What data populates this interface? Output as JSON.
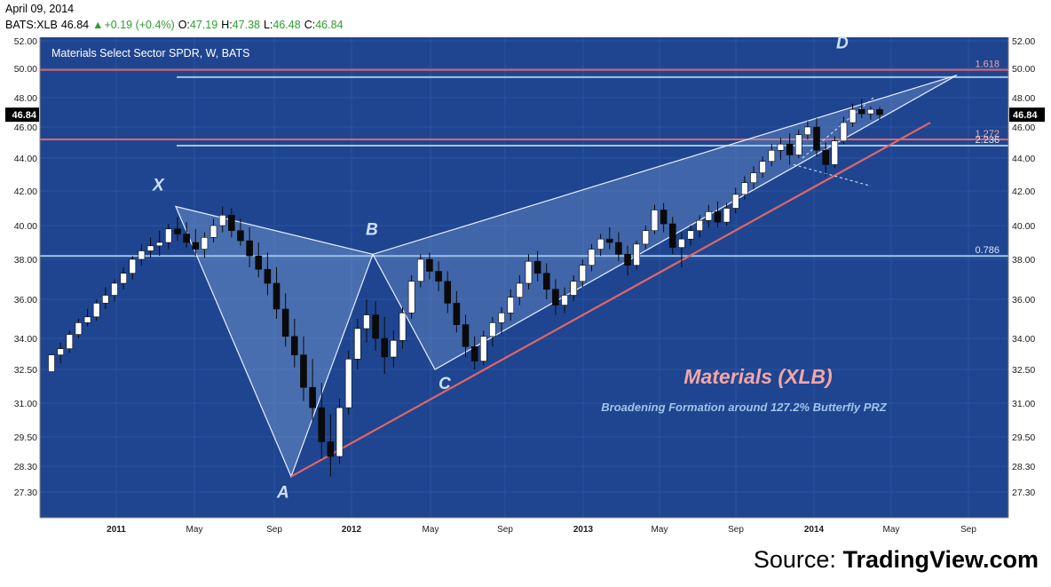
{
  "header": {
    "date": "April 09, 2014",
    "symbol": "BATS:XLB",
    "last": "46.84",
    "change_icon": "up-triangle-icon",
    "change": "+0.19 (+0.4%)",
    "open_label": "O:",
    "open": "47.19",
    "high_label": "H:",
    "high": "47.38",
    "low_label": "L:",
    "low": "46.48",
    "close_label": "C:",
    "close": "46.84"
  },
  "chart_data": {
    "type": "candlestick",
    "title": "Materials Select Sector SPDR, W, BATS",
    "y_ticks": [
      "52.00",
      "50.00",
      "48.00",
      "46.00",
      "44.00",
      "42.00",
      "40.00",
      "38.00",
      "36.00",
      "34.00",
      "32.50",
      "31.00",
      "29.50",
      "28.30",
      "27.30"
    ],
    "y_tick_values": [
      52.0,
      50.0,
      48.0,
      46.0,
      44.0,
      42.0,
      40.0,
      38.0,
      36.0,
      34.0,
      32.5,
      31.0,
      29.5,
      28.3,
      27.3
    ],
    "x_ticks": [
      "2011",
      "May",
      "Sep",
      "2012",
      "May",
      "Sep",
      "2013",
      "May",
      "Sep",
      "2014",
      "May",
      "Sep"
    ],
    "x_tick_dates": [
      "2011-01",
      "2011-05",
      "2011-09",
      "2012-01",
      "2012-05",
      "2012-09",
      "2013-01",
      "2013-05",
      "2013-09",
      "2014-01",
      "2014-05",
      "2014-09"
    ],
    "last_price_label": "46.84",
    "last_price": 46.84,
    "horizontal_levels": [
      {
        "label": "1.618",
        "value": 49.9,
        "color": "#e06666"
      },
      {
        "label": "",
        "value": 49.4,
        "color": "#9fc5e8"
      },
      {
        "label": "1.272",
        "value": 45.2,
        "color": "#e06666"
      },
      {
        "label": "2.236",
        "value": 44.8,
        "color": "#9fc5e8"
      },
      {
        "label": "0.786",
        "value": 38.2,
        "color": "#9fc5e8"
      }
    ],
    "pattern_points": [
      {
        "label": "X",
        "date": "2011-04",
        "value": 41.1
      },
      {
        "label": "A",
        "date": "2011-10",
        "value": 27.9
      },
      {
        "label": "B",
        "date": "2012-03",
        "value": 38.3
      },
      {
        "label": "C",
        "date": "2012-06",
        "value": 32.5
      },
      {
        "label": "D",
        "date": "2014-03",
        "value": 47.3
      }
    ],
    "annotations": {
      "main": "Materials (XLB)",
      "sub": "Broadening Formation around 127.2% Butterfly PRZ"
    },
    "candles": [
      [
        32.4,
        33.2,
        32.4,
        33.2
      ],
      [
        33.2,
        33.8,
        32.8,
        33.5
      ],
      [
        33.5,
        34.4,
        33.3,
        34.2
      ],
      [
        34.2,
        35.0,
        34.0,
        34.8
      ],
      [
        34.8,
        35.5,
        34.6,
        35.1
      ],
      [
        35.1,
        36.0,
        34.9,
        35.8
      ],
      [
        35.8,
        36.6,
        35.5,
        36.2
      ],
      [
        36.2,
        37.0,
        35.9,
        36.8
      ],
      [
        36.8,
        37.6,
        36.5,
        37.3
      ],
      [
        37.3,
        38.2,
        37.0,
        38.0
      ],
      [
        38.0,
        38.9,
        37.7,
        38.5
      ],
      [
        38.5,
        39.3,
        38.1,
        38.8
      ],
      [
        38.8,
        39.7,
        38.2,
        39.0
      ],
      [
        39.0,
        40.1,
        38.6,
        39.8
      ],
      [
        39.8,
        40.5,
        39.1,
        39.5
      ],
      [
        39.5,
        40.2,
        38.7,
        39.0
      ],
      [
        39.0,
        39.8,
        38.2,
        38.6
      ],
      [
        38.6,
        39.6,
        38.1,
        39.3
      ],
      [
        39.3,
        40.4,
        39.0,
        40.0
      ],
      [
        40.0,
        41.1,
        39.6,
        40.6
      ],
      [
        40.6,
        41.0,
        39.3,
        39.7
      ],
      [
        39.7,
        40.4,
        38.8,
        39.1
      ],
      [
        39.1,
        39.9,
        37.6,
        38.2
      ],
      [
        38.2,
        39.0,
        37.1,
        37.5
      ],
      [
        37.5,
        38.4,
        36.2,
        36.8
      ],
      [
        36.8,
        37.6,
        35.0,
        35.5
      ],
      [
        35.5,
        36.3,
        33.6,
        34.1
      ],
      [
        34.1,
        35.0,
        32.6,
        33.2
      ],
      [
        33.2,
        34.1,
        31.1,
        31.7
      ],
      [
        31.7,
        33.0,
        30.2,
        30.8
      ],
      [
        30.8,
        31.9,
        28.6,
        29.3
      ],
      [
        29.3,
        30.5,
        27.9,
        28.7
      ],
      [
        28.7,
        31.2,
        28.4,
        30.8
      ],
      [
        30.8,
        33.4,
        30.5,
        33.0
      ],
      [
        33.0,
        35.0,
        32.5,
        34.5
      ],
      [
        34.5,
        36.0,
        33.8,
        35.2
      ],
      [
        35.2,
        35.9,
        33.4,
        34.0
      ],
      [
        34.0,
        35.1,
        32.3,
        33.1
      ],
      [
        33.1,
        34.4,
        32.6,
        33.9
      ],
      [
        33.9,
        35.6,
        33.5,
        35.3
      ],
      [
        35.3,
        37.2,
        35.0,
        36.9
      ],
      [
        36.9,
        38.3,
        36.6,
        38.0
      ],
      [
        38.0,
        38.4,
        37.0,
        37.4
      ],
      [
        37.4,
        37.9,
        36.4,
        36.9
      ],
      [
        36.9,
        37.4,
        35.3,
        35.8
      ],
      [
        35.8,
        36.4,
        34.3,
        34.7
      ],
      [
        34.7,
        35.2,
        33.1,
        33.6
      ],
      [
        33.6,
        34.1,
        32.5,
        32.9
      ],
      [
        32.9,
        34.4,
        32.7,
        34.1
      ],
      [
        34.1,
        35.1,
        33.6,
        34.8
      ],
      [
        34.8,
        35.6,
        34.2,
        35.3
      ],
      [
        35.3,
        36.5,
        34.9,
        36.1
      ],
      [
        36.1,
        37.2,
        35.7,
        36.8
      ],
      [
        36.8,
        38.3,
        36.5,
        37.9
      ],
      [
        37.9,
        38.5,
        36.9,
        37.3
      ],
      [
        37.3,
        37.8,
        36.0,
        36.5
      ],
      [
        36.5,
        37.0,
        35.2,
        35.7
      ],
      [
        35.7,
        36.6,
        35.3,
        36.2
      ],
      [
        36.2,
        37.2,
        35.9,
        36.9
      ],
      [
        36.9,
        38.0,
        36.6,
        37.7
      ],
      [
        37.7,
        38.9,
        37.4,
        38.6
      ],
      [
        38.6,
        39.5,
        38.2,
        39.2
      ],
      [
        39.2,
        39.9,
        38.6,
        39.0
      ],
      [
        39.0,
        39.6,
        37.9,
        38.3
      ],
      [
        38.3,
        38.8,
        37.2,
        37.7
      ],
      [
        37.7,
        39.1,
        37.5,
        38.9
      ],
      [
        38.9,
        40.0,
        38.6,
        39.7
      ],
      [
        39.7,
        41.2,
        39.5,
        40.9
      ],
      [
        40.9,
        41.3,
        39.6,
        40.1
      ],
      [
        40.1,
        40.5,
        38.3,
        38.7
      ],
      [
        38.7,
        39.6,
        37.6,
        39.2
      ],
      [
        39.2,
        40.0,
        38.8,
        39.7
      ],
      [
        39.7,
        40.6,
        39.3,
        40.3
      ],
      [
        40.3,
        41.2,
        39.9,
        40.8
      ],
      [
        40.8,
        41.4,
        39.9,
        40.2
      ],
      [
        40.2,
        41.3,
        40.0,
        41.0
      ],
      [
        41.0,
        42.2,
        40.7,
        41.8
      ],
      [
        41.8,
        42.9,
        41.5,
        42.5
      ],
      [
        42.5,
        43.5,
        42.1,
        43.1
      ],
      [
        43.1,
        44.1,
        42.8,
        43.8
      ],
      [
        43.8,
        44.9,
        43.5,
        44.5
      ],
      [
        44.5,
        45.3,
        43.9,
        44.9
      ],
      [
        44.9,
        45.6,
        43.6,
        44.2
      ],
      [
        44.2,
        45.8,
        44.0,
        45.5
      ],
      [
        45.5,
        46.4,
        45.2,
        46.0
      ],
      [
        46.0,
        46.6,
        44.1,
        44.5
      ],
      [
        44.5,
        45.0,
        42.9,
        43.6
      ],
      [
        43.6,
        45.4,
        43.4,
        45.1
      ],
      [
        45.1,
        46.7,
        44.9,
        46.3
      ],
      [
        46.3,
        47.6,
        46.0,
        47.2
      ],
      [
        47.2,
        47.9,
        46.6,
        46.9
      ],
      [
        46.9,
        47.4,
        46.5,
        47.2
      ],
      [
        47.19,
        47.38,
        46.48,
        46.84
      ]
    ]
  },
  "source": {
    "prefix": "Source: ",
    "brand": "TradingView.com"
  }
}
